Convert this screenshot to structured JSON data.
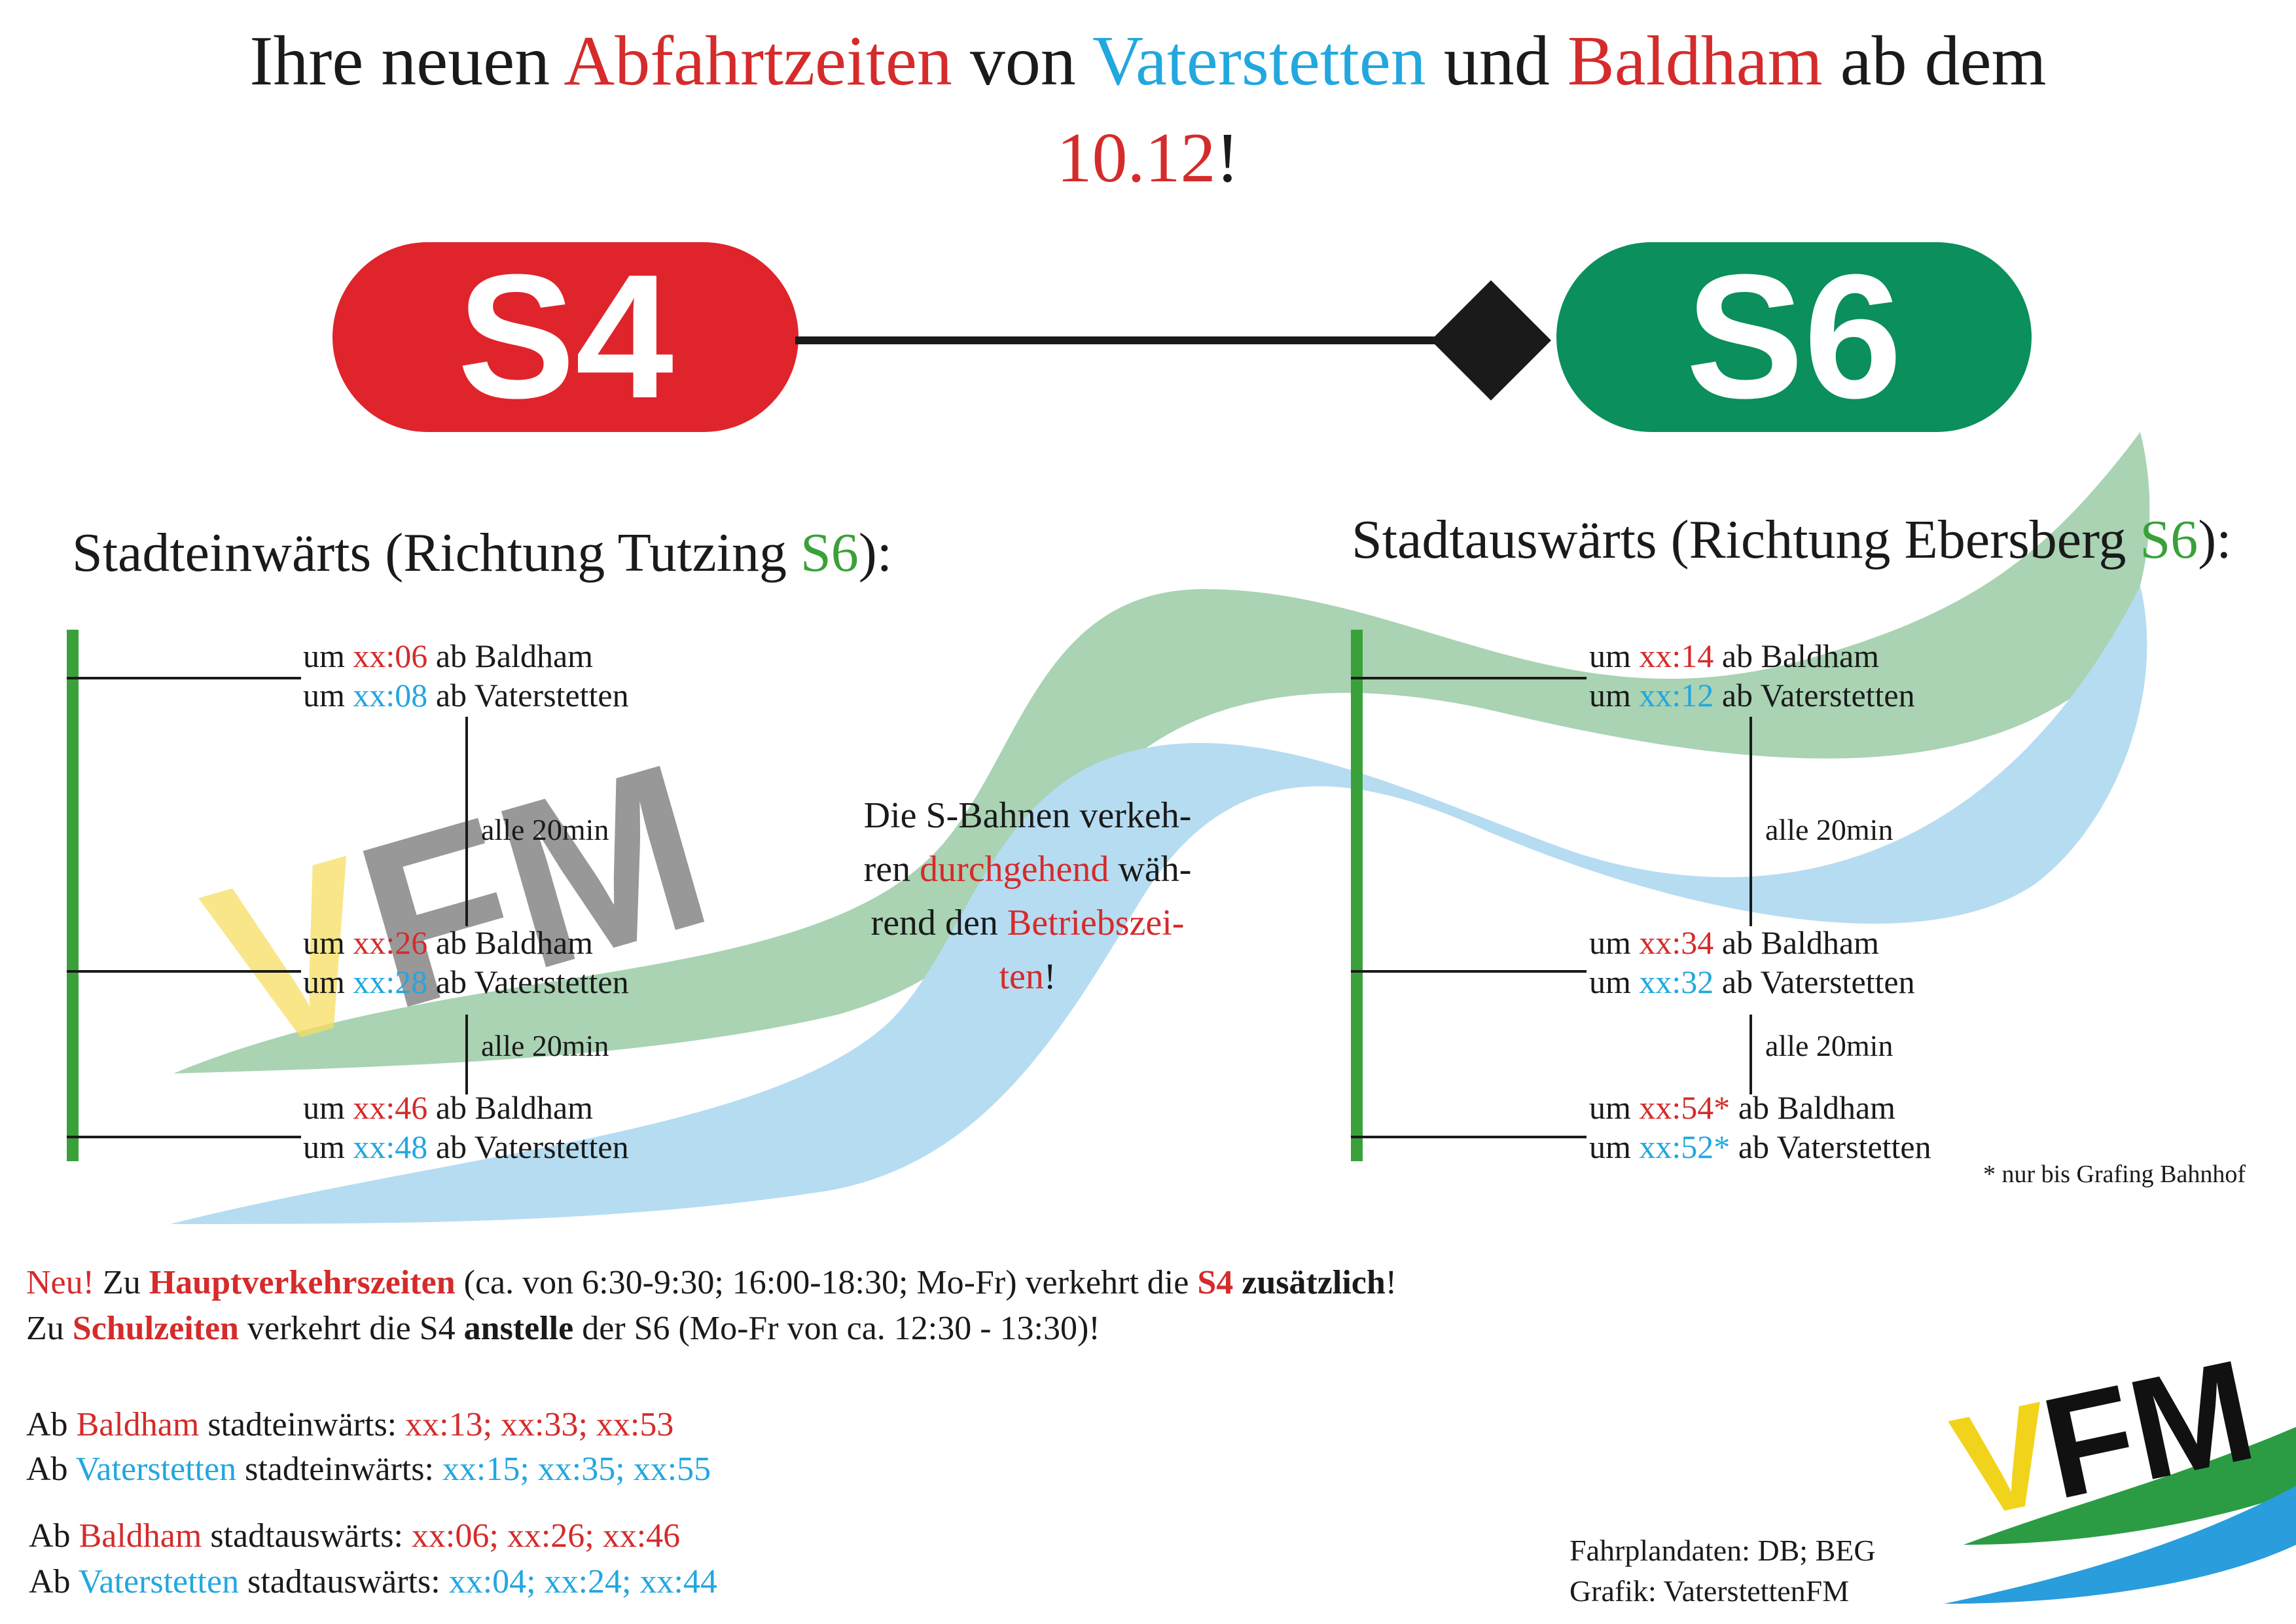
{
  "title": {
    "w1": "Ihre neuen",
    "w2": "Abfahrtzeiten",
    "w3": "von",
    "w4": "Vaterstetten",
    "w5": "und",
    "w6": "Baldham",
    "w7": "ab dem",
    "date": "10.12",
    "bang": "!"
  },
  "lines": {
    "left": "S4",
    "right": "S6",
    "left_color": "#e0242c",
    "right_color": "#0b8f5c"
  },
  "colors": {
    "red": "#d52b2b",
    "blue": "#22a7df",
    "green": "#3aa13a",
    "wave_green": "#a9d3b3",
    "wave_blue": "#b6dcf1",
    "watermark_yellow": "#f6dd62",
    "watermark_gray": "#8d8d8d"
  },
  "inbound": {
    "heading_start": "Stadteinwärts (Richtung Tutzing ",
    "heading_line": "S6",
    "heading_end": "):",
    "interval": "alle 20min",
    "interval2": "alle 20min",
    "blocks": [
      {
        "pre1": "um ",
        "time1": "xx:06",
        "post1": " ab Baldham",
        "pre2": "um ",
        "time2": "xx:08",
        "post2": " ab Vaterstetten"
      },
      {
        "pre1": "um ",
        "time1": "xx:26",
        "post1": " ab Baldham",
        "pre2": "um ",
        "time2": "xx:28",
        "post2": " ab Vaterstetten"
      },
      {
        "pre1": "um ",
        "time1": "xx:46",
        "post1": " ab Baldham",
        "pre2": "um ",
        "time2": "xx:48",
        "post2": " ab Vaterstetten"
      }
    ]
  },
  "outbound": {
    "heading_start": "Stadtauswärts (Richtung Ebersberg ",
    "heading_line": "S6",
    "heading_end": "):",
    "interval": "alle 20min",
    "interval2": "alle 20min",
    "blocks": [
      {
        "pre1": "um ",
        "time1": "xx:14",
        "post1": " ab Baldham",
        "pre2": "um ",
        "time2": "xx:12",
        "post2": " ab Vaterstetten"
      },
      {
        "pre1": "um ",
        "time1": "xx:34",
        "post1": " ab Baldham",
        "pre2": "um ",
        "time2": "xx:32",
        "post2": " ab Vaterstetten"
      },
      {
        "pre1": "um ",
        "time1": "xx:54*",
        "post1": " ab Baldham",
        "pre2": "um ",
        "time2": "xx:52*",
        "post2": " ab Vaterstetten"
      }
    ],
    "footnote": "* nur bis Grafing Bahnhof"
  },
  "center_note": {
    "l1": "Die S-Bahnen verkeh-",
    "l2a": "ren ",
    "l2b": "durchgehend",
    "l2c": " wäh-",
    "l3a": "rend den ",
    "l3b": "Betriebszei-",
    "l4a": "ten",
    "l4b": "!"
  },
  "notice": {
    "p1a": "Neu!",
    "p1b": " Zu ",
    "p1c": "Hauptverkehrszeiten",
    "p1d": " (ca. von 6:30-9:30; 16:00-18:30; Mo-Fr) verkehrt die ",
    "p1e": "S4",
    "p1f": " ",
    "p1g": "zusätzlich",
    "p1h": "!",
    "p2a": "Zu ",
    "p2b": "Schulzeiten",
    "p2c": " verkehrt die S4 ",
    "p2d": "anstelle",
    "p2e": " der S6 (Mo-Fr von ca. 12:30 - 13:30)!"
  },
  "extra_times": [
    {
      "pre": "Ab ",
      "station": "Baldham",
      "dir": " stadteinwärts: ",
      "times": "xx:13; xx:33; xx:53",
      "kind": "red"
    },
    {
      "pre": "Ab ",
      "station": "Vaterstetten",
      "dir": " stadteinwärts: ",
      "times": "xx:15; xx:35; xx:55",
      "kind": "blue"
    },
    {
      "pre": "Ab ",
      "station": "Baldham",
      "dir": " stadtauswärts: ",
      "times": "xx:06; xx:26; xx:46",
      "kind": "red"
    },
    {
      "pre": "Ab ",
      "station": "Vaterstetten",
      "dir": " stadtauswärts: ",
      "times": "xx:04; xx:24; xx:44",
      "kind": "blue"
    }
  ],
  "credits": {
    "data": "Fahrplandaten: DB; BEG",
    "graphic": "Grafik: VaterstettenFM"
  },
  "logo": {
    "v": "V",
    "fm": "FM"
  }
}
